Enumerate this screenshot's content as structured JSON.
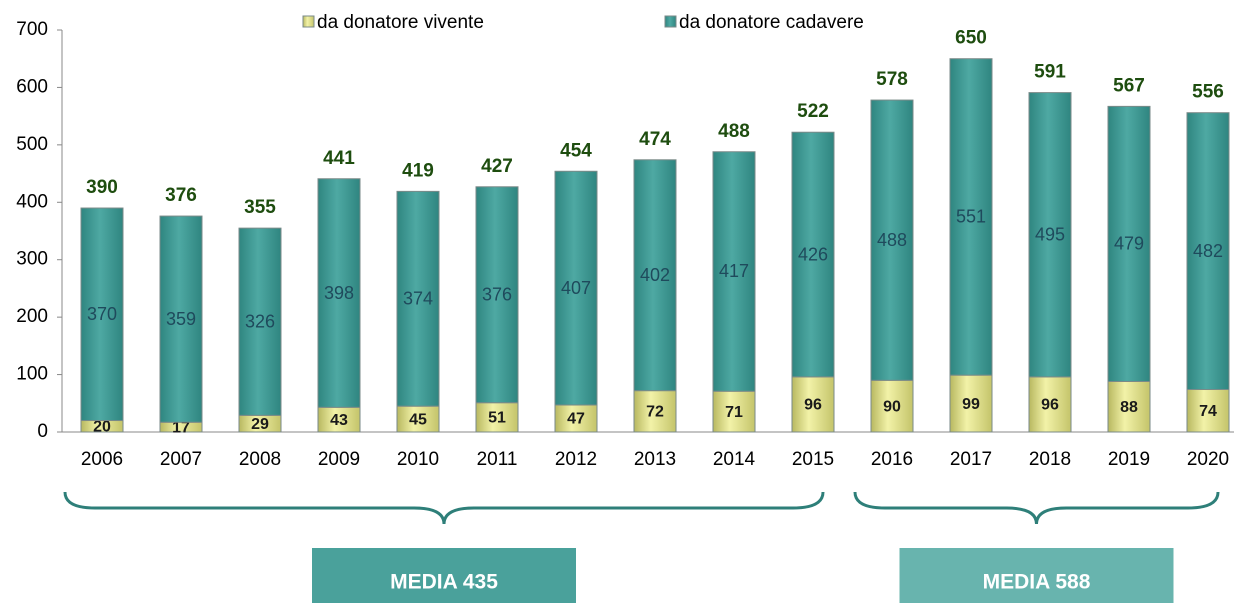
{
  "chart_data": {
    "type": "stacked_bar",
    "categories": [
      "2006",
      "2007",
      "2008",
      "2009",
      "2010",
      "2011",
      "2012",
      "2013",
      "2014",
      "2015",
      "2016",
      "2017",
      "2018",
      "2019",
      "2020"
    ],
    "series": [
      {
        "name": "da donatore vivente",
        "color": "#dede86",
        "values": [
          20,
          17,
          29,
          43,
          45,
          51,
          47,
          72,
          71,
          96,
          90,
          99,
          96,
          88,
          74
        ]
      },
      {
        "name": "da donatore cadavere",
        "color": "#3f9c96",
        "values": [
          370,
          359,
          326,
          398,
          374,
          376,
          407,
          402,
          417,
          426,
          488,
          551,
          495,
          479,
          482
        ]
      }
    ],
    "totals": [
      390,
      376,
      355,
      441,
      419,
      427,
      454,
      474,
      488,
      522,
      578,
      650,
      591,
      567,
      556
    ],
    "ylim": [
      0,
      700
    ],
    "yticks": [
      0,
      100,
      200,
      300,
      400,
      500,
      600,
      700
    ],
    "grid": false,
    "legend": "top",
    "annotations": [
      {
        "text": "MEDIA 435",
        "start": "2006",
        "end": "2015",
        "color": "#4aa19b"
      },
      {
        "text": "MEDIA 588",
        "start": "2016",
        "end": "2020",
        "color": "#68b4ae"
      }
    ]
  }
}
